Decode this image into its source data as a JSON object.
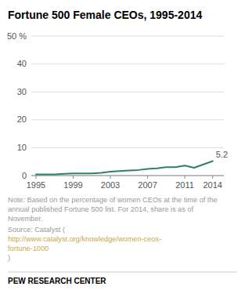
{
  "chart_data": {
    "type": "line",
    "title": "Fortune 500 Female CEOs, 1995-2014",
    "x": [
      1995,
      1996,
      1997,
      1998,
      1999,
      2000,
      2001,
      2002,
      2003,
      2004,
      2005,
      2006,
      2007,
      2008,
      2009,
      2010,
      2011,
      2012,
      2013,
      2014
    ],
    "values": [
      0.4,
      0.4,
      0.4,
      0.6,
      0.8,
      0.8,
      0.8,
      1.0,
      1.4,
      1.6,
      1.8,
      2.0,
      2.4,
      2.6,
      3.0,
      3.0,
      3.6,
      2.8,
      4.0,
      5.2
    ],
    "color": "#2d7f6e",
    "xlim": [
      1994.5,
      2015.2
    ],
    "xticks": [
      1995,
      1999,
      2003,
      2007,
      2011,
      2014
    ],
    "ylim": [
      0,
      50
    ],
    "yticks": [
      0,
      10,
      20,
      30,
      40,
      {
        "value": 50,
        "label": "50 %"
      }
    ],
    "grid": true,
    "annotations": [
      {
        "text": "5.2",
        "x": 2014,
        "y": 5.2
      }
    ],
    "note": "Note: Based on the percentage of women CEOs at the time of the\nannual published Fortune 500 list. For 2014, share is as of\nNovember.",
    "source": "Source: Catalyst (",
    "source_link": {
      "text": "http://www.catalyst.org/knowledge/women-ceos-\nfortune-1000",
      "color": "#c8a84b"
    },
    "source_end": ")",
    "footer": "PEW RESEARCH CENTER"
  }
}
